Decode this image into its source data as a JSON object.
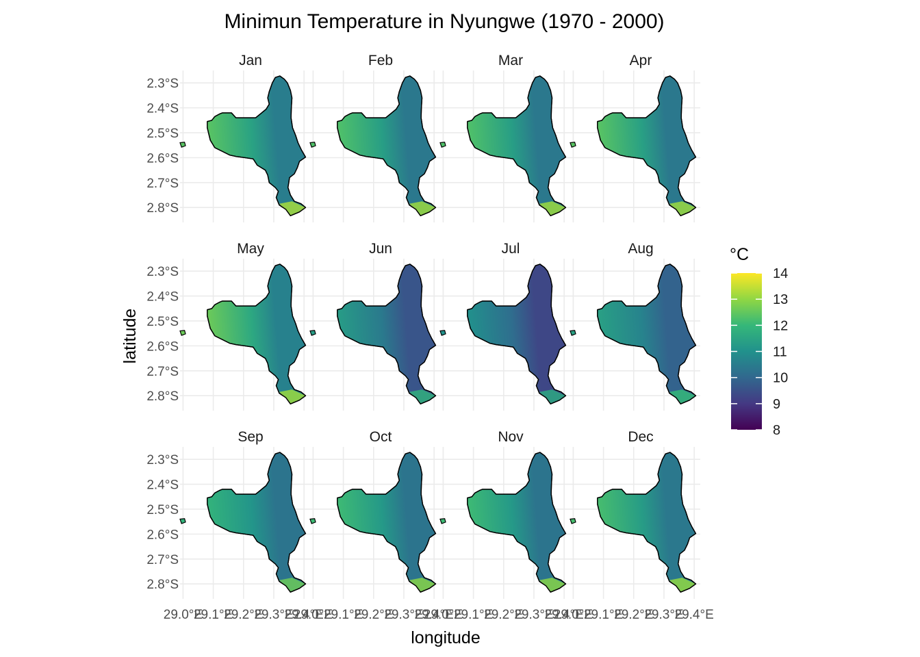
{
  "chart_data": {
    "type": "heatmap",
    "title": "Minimun Temperature in Nyungwe (1970 - 2000)",
    "xlabel": "longitude",
    "ylabel": "latitude",
    "facets": [
      {
        "label": "Jan",
        "west_value": 12.4,
        "east_value": 10.5,
        "south_value": 13.2
      },
      {
        "label": "Feb",
        "west_value": 12.3,
        "east_value": 10.4,
        "south_value": 13.1
      },
      {
        "label": "Mar",
        "west_value": 12.3,
        "east_value": 10.4,
        "south_value": 13.1
      },
      {
        "label": "Apr",
        "west_value": 12.4,
        "east_value": 10.4,
        "south_value": 13.1
      },
      {
        "label": "May",
        "west_value": 12.6,
        "east_value": 10.6,
        "south_value": 13.1
      },
      {
        "label": "Jun",
        "west_value": 11.3,
        "east_value": 9.6,
        "south_value": 11.8
      },
      {
        "label": "Jul",
        "west_value": 11.0,
        "east_value": 9.3,
        "south_value": 11.6
      },
      {
        "label": "Aug",
        "west_value": 11.4,
        "east_value": 9.9,
        "south_value": 12.0
      },
      {
        "label": "Sep",
        "west_value": 11.9,
        "east_value": 10.3,
        "south_value": 12.6
      },
      {
        "label": "Oct",
        "west_value": 12.1,
        "east_value": 10.3,
        "south_value": 12.9
      },
      {
        "label": "Nov",
        "west_value": 12.1,
        "east_value": 10.3,
        "south_value": 12.9
      },
      {
        "label": "Dec",
        "west_value": 12.2,
        "east_value": 10.4,
        "south_value": 13.0
      }
    ],
    "y_ticks": [
      "2.3°S",
      "2.4°S",
      "2.5°S",
      "2.6°S",
      "2.7°S",
      "2.8°S"
    ],
    "y_tick_values": [
      -2.3,
      -2.4,
      -2.5,
      -2.6,
      -2.7,
      -2.8
    ],
    "x_ticks": [
      "29.0°E",
      "29.1°E",
      "29.2°E",
      "29.3°E",
      "29.4°E"
    ],
    "x_tick_values": [
      29.0,
      29.1,
      29.2,
      29.3,
      29.4
    ],
    "xlim": [
      28.99,
      29.42
    ],
    "ylim": [
      -2.86,
      -2.25
    ],
    "colorbar": {
      "title": "°C",
      "ticks": [
        "14",
        "13",
        "12",
        "11",
        "10",
        "9",
        "8"
      ],
      "range": [
        8,
        14
      ],
      "palette": [
        "#440154",
        "#443983",
        "#31688e",
        "#21918c",
        "#35b779",
        "#90d743",
        "#fde725"
      ]
    },
    "grid": true,
    "legend_position": "right"
  }
}
